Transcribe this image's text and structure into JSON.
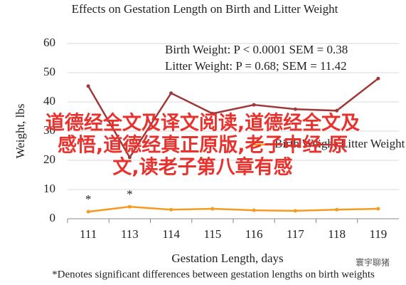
{
  "chart_data": {
    "type": "line",
    "title": "Effects on Gestation Length on Birth and Litter Weight",
    "x_label": "Gestation Length, days",
    "y_label": "Weight, lbs",
    "footnote": "*Denotes significant differences between gestation lengths on birth weights",
    "stats": [
      "Birth Weight: P < 0.0001 SEM = 0.38",
      "Litter Weight: P = 0.68; SEM = 11.42"
    ],
    "categories": [
      "111",
      "113",
      "114",
      "115",
      "116",
      "117",
      "118",
      "119"
    ],
    "series": [
      {
        "name": "Birth Weight",
        "color": "#f39c1f",
        "values": [
          2.4,
          4.1,
          3.1,
          3.4,
          2.9,
          2.7,
          3.1,
          3.4
        ],
        "markers": [
          "*",
          "*",
          null,
          null,
          null,
          null,
          null,
          null
        ]
      },
      {
        "name": "Litter Weight",
        "color": "#9e3a3a",
        "values": [
          45.4,
          21,
          43,
          36,
          39,
          37.5,
          37,
          48
        ]
      }
    ],
    "ylim": [
      0,
      60
    ],
    "yticks": [
      0,
      10,
      20,
      30,
      40,
      50,
      60
    ],
    "grid": true,
    "overlay_text": [
      "道德经全文及译文阅读,道德经全文及",
      "感悟,道德经真正原版,老子中经 原",
      "文,读老子第八章有感"
    ],
    "watermark": "寰宇聊猪"
  }
}
